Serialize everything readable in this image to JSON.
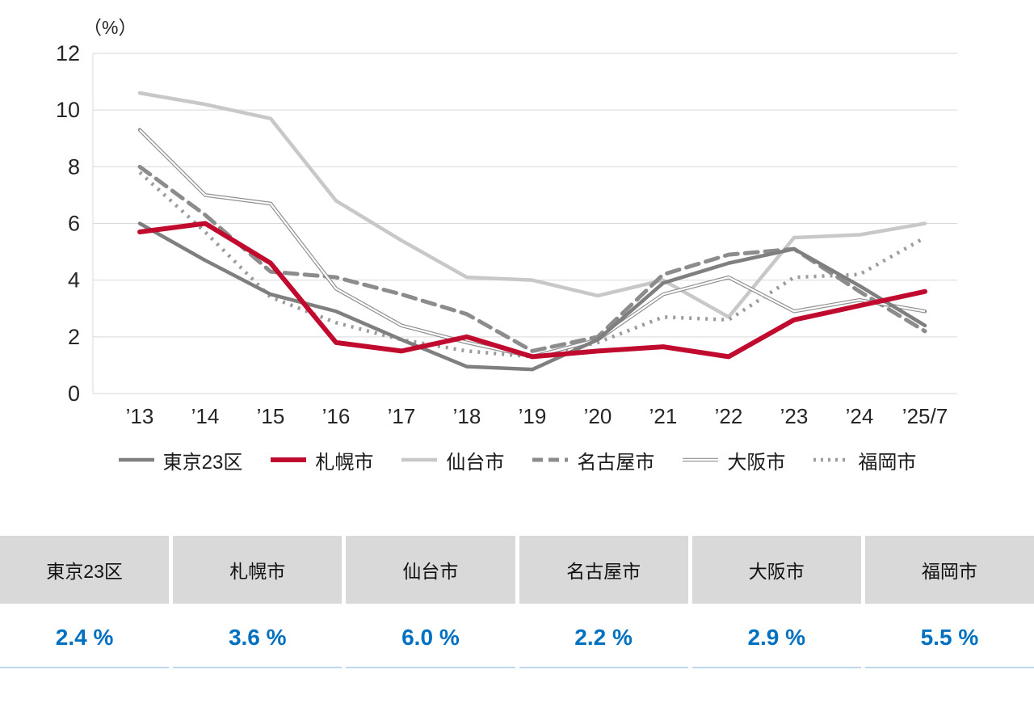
{
  "chart_data": {
    "type": "line",
    "title": "",
    "unit_label": "（%）",
    "xlabel": "",
    "ylabel": "",
    "ylim": [
      0,
      12
    ],
    "yticks": [
      0,
      2,
      4,
      6,
      8,
      10,
      12
    ],
    "grid": true,
    "grid_color": "#d9d9d9",
    "axis_text_color": "#262626",
    "legend_position": "bottom",
    "categories": [
      "’13",
      "’14",
      "’15",
      "’16",
      "’17",
      "’18",
      "’19",
      "’20",
      "’21",
      "’22",
      "’23",
      "’24",
      "’25/7"
    ],
    "series": [
      {
        "name": "東京23区",
        "color": "#7f7f7f",
        "style": "solid",
        "width": 4.5,
        "values": [
          6.0,
          4.7,
          3.5,
          2.9,
          1.9,
          0.95,
          0.85,
          1.9,
          3.9,
          4.6,
          5.1,
          3.8,
          2.4
        ]
      },
      {
        "name": "札幌市",
        "color": "#c00a2e",
        "style": "solid",
        "width": 6,
        "values": [
          5.7,
          6.0,
          4.6,
          1.8,
          1.5,
          2.0,
          1.3,
          1.5,
          1.65,
          1.3,
          2.6,
          3.1,
          3.6
        ]
      },
      {
        "name": "仙台市",
        "color": "#c8c8c8",
        "style": "solid",
        "width": 4.5,
        "values": [
          10.6,
          10.2,
          9.7,
          6.8,
          5.4,
          4.1,
          4.0,
          3.45,
          4.0,
          2.7,
          5.5,
          5.6,
          6.0
        ]
      },
      {
        "name": "名古屋市",
        "color": "#8c8c8c",
        "style": "dashed",
        "width": 5,
        "values": [
          8.0,
          6.3,
          4.3,
          4.1,
          3.5,
          2.8,
          1.5,
          2.0,
          4.2,
          4.9,
          5.1,
          3.6,
          2.2
        ]
      },
      {
        "name": "大阪市",
        "color": "#909090",
        "style": "double",
        "width": 4.6,
        "values": [
          9.3,
          7.0,
          6.7,
          3.7,
          2.4,
          1.8,
          1.3,
          1.9,
          3.5,
          4.1,
          2.9,
          3.3,
          2.9
        ]
      },
      {
        "name": "福岡市",
        "color": "#9b9b9b",
        "style": "dotted",
        "width": 4.5,
        "values": [
          7.8,
          5.7,
          3.4,
          2.5,
          1.9,
          1.5,
          1.3,
          1.8,
          2.7,
          2.6,
          4.1,
          4.2,
          5.5
        ]
      }
    ]
  },
  "summary_table": {
    "header_bg": "#d9d9d9",
    "value_color": "#0070c0",
    "columns": [
      {
        "city": "東京23区",
        "value": "2.4 %"
      },
      {
        "city": "札幌市",
        "value": "3.6 %"
      },
      {
        "city": "仙台市",
        "value": "6.0 %"
      },
      {
        "city": "名古屋市",
        "value": "2.2 %"
      },
      {
        "city": "大阪市",
        "value": "2.9 %"
      },
      {
        "city": "福岡市",
        "value": "5.5 %"
      }
    ]
  }
}
